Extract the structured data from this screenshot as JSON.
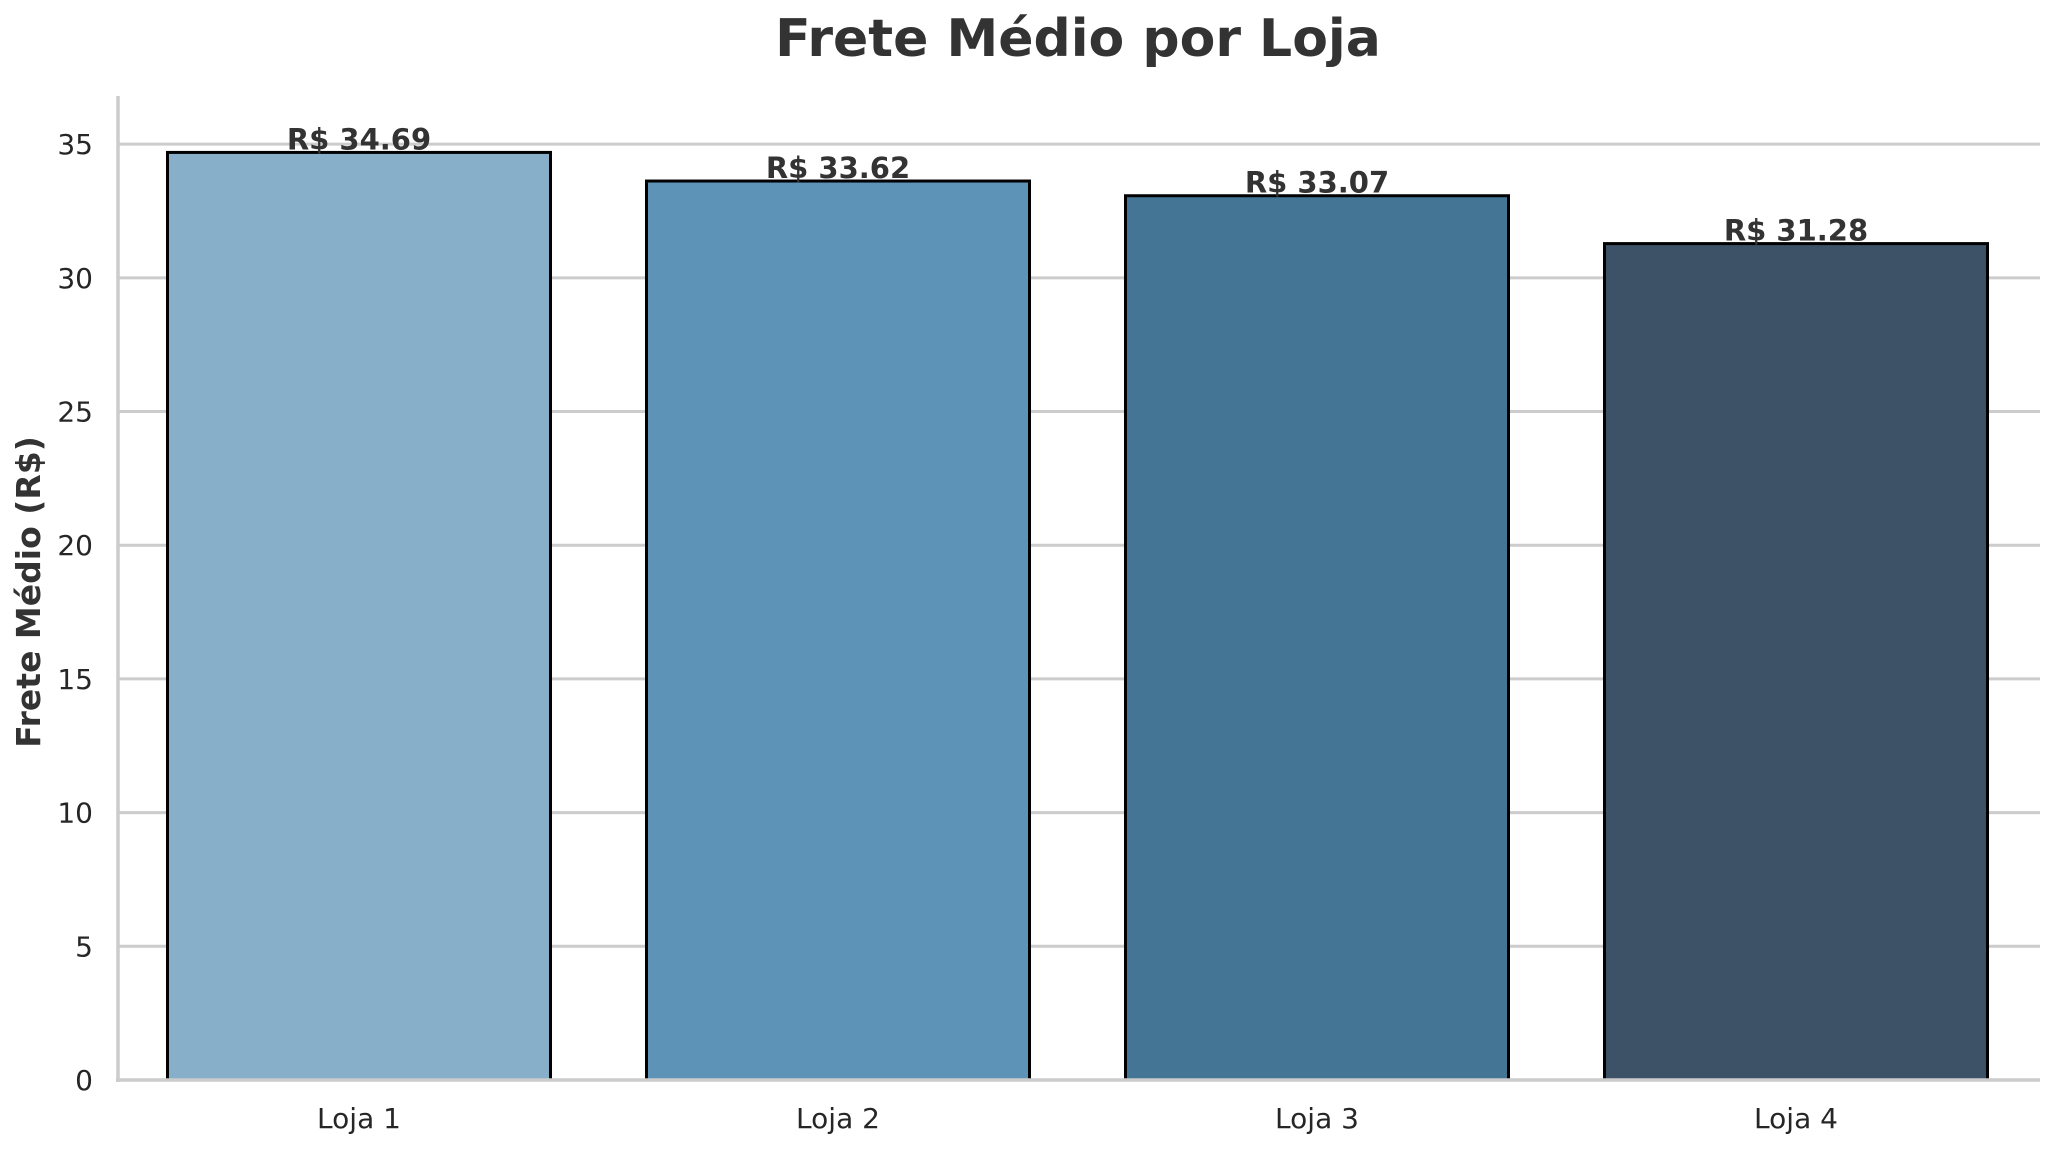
{
  "chart_data": {
    "type": "bar",
    "title": "Frete Médio por Loja",
    "xlabel": "",
    "ylabel": "Frete Médio (R$)",
    "categories": [
      "Loja 1",
      "Loja 2",
      "Loja 3",
      "Loja 4"
    ],
    "values": [
      34.69,
      33.62,
      33.07,
      31.28
    ],
    "data_labels": [
      "R$ 34.69",
      "R$ 33.62",
      "R$ 33.07",
      "R$ 31.28"
    ],
    "colors": [
      "#88afca",
      "#5e93b8",
      "#457595",
      "#3d5266"
    ],
    "ylim": [
      0,
      36.8
    ],
    "yticks": [
      0,
      5,
      10,
      15,
      20,
      25,
      30,
      35
    ],
    "grid": "horizontal",
    "legend": "none"
  }
}
